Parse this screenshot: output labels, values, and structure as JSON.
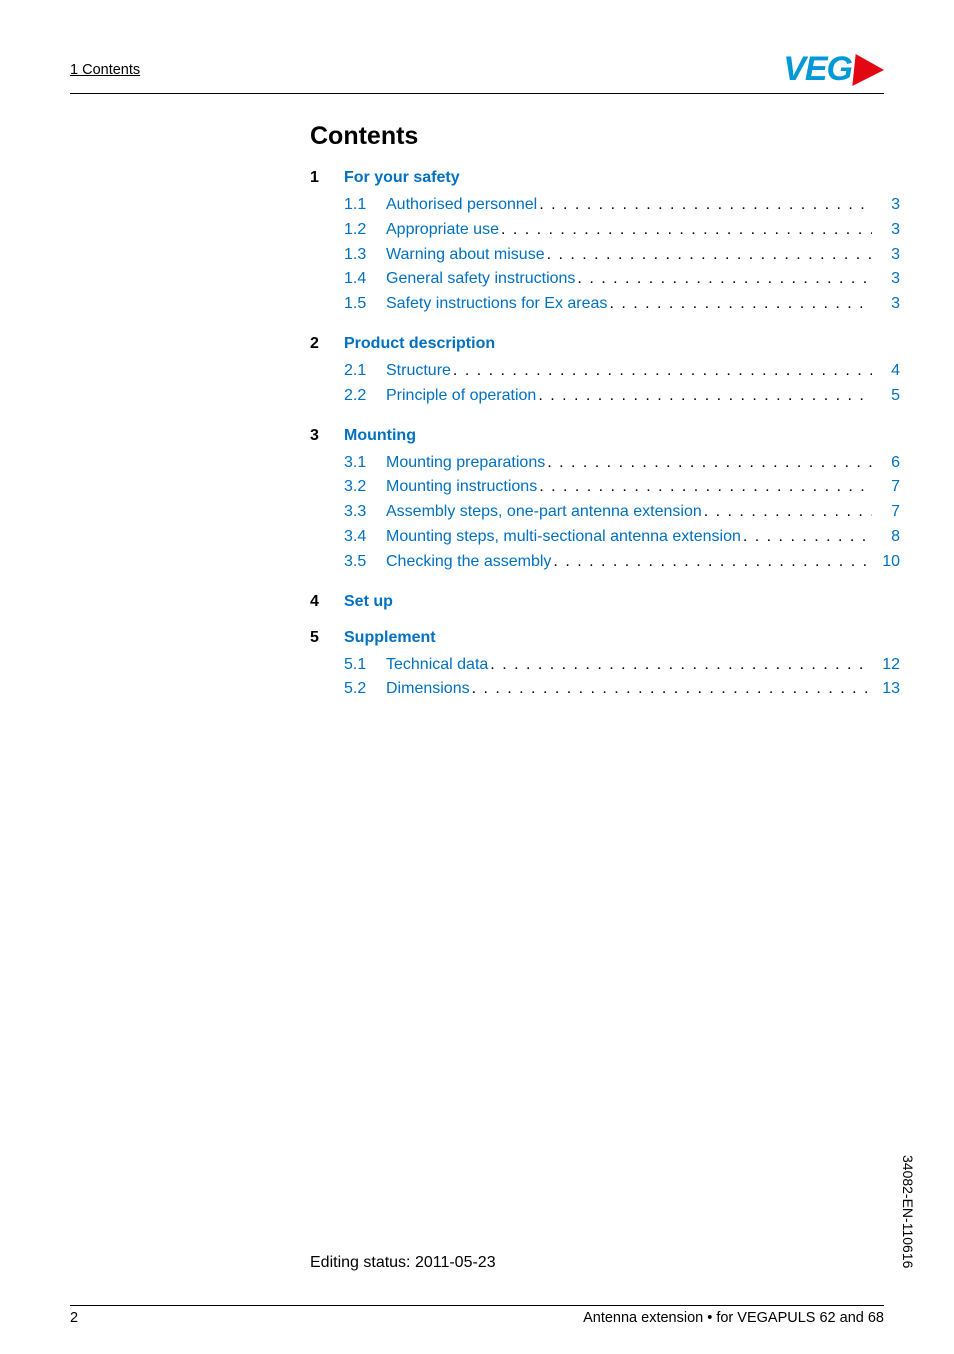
{
  "header": {
    "section_label": "1  Contents"
  },
  "logo": {
    "text": "VEG",
    "brand_color": "#0099d8",
    "triangle_color": "#e30613"
  },
  "title": "Contents",
  "chapters": [
    {
      "num": "1",
      "title": "For your safety",
      "items": [
        {
          "num": "1.1",
          "text": "Authorised personnel",
          "page": "3"
        },
        {
          "num": "1.2",
          "text": "Appropriate use",
          "page": "3"
        },
        {
          "num": "1.3",
          "text": "Warning about misuse",
          "page": "3"
        },
        {
          "num": "1.4",
          "text": "General safety instructions",
          "page": "3"
        },
        {
          "num": "1.5",
          "text": "Safety instructions for Ex areas",
          "page": "3"
        }
      ]
    },
    {
      "num": "2",
      "title": "Product description",
      "items": [
        {
          "num": "2.1",
          "text": "Structure",
          "page": "4"
        },
        {
          "num": "2.2",
          "text": "Principle of operation",
          "page": "5"
        }
      ]
    },
    {
      "num": "3",
      "title": "Mounting",
      "items": [
        {
          "num": "3.1",
          "text": "Mounting preparations",
          "page": "6"
        },
        {
          "num": "3.2",
          "text": "Mounting instructions",
          "page": "7"
        },
        {
          "num": "3.3",
          "text": "Assembly steps, one-part antenna extension",
          "page": "7"
        },
        {
          "num": "3.4",
          "text": "Mounting steps, multi-sectional antenna extension",
          "page": "8"
        },
        {
          "num": "3.5",
          "text": "Checking the assembly",
          "page": "10"
        }
      ]
    },
    {
      "num": "4",
      "title": "Set up",
      "items": []
    },
    {
      "num": "5",
      "title": "Supplement",
      "items": [
        {
          "num": "5.1",
          "text": "Technical data",
          "page": "12"
        },
        {
          "num": "5.2",
          "text": "Dimensions",
          "page": "13"
        }
      ]
    }
  ],
  "editing_status": "Editing status: 2011-05-23",
  "footer": {
    "page_number": "2",
    "doc_title": "Antenna extension • for VEGAPULS 62 and 68"
  },
  "side_text": "34082-EN-110616",
  "link_color": "#0070c0",
  "text_color": "#000000",
  "background_color": "#ffffff"
}
